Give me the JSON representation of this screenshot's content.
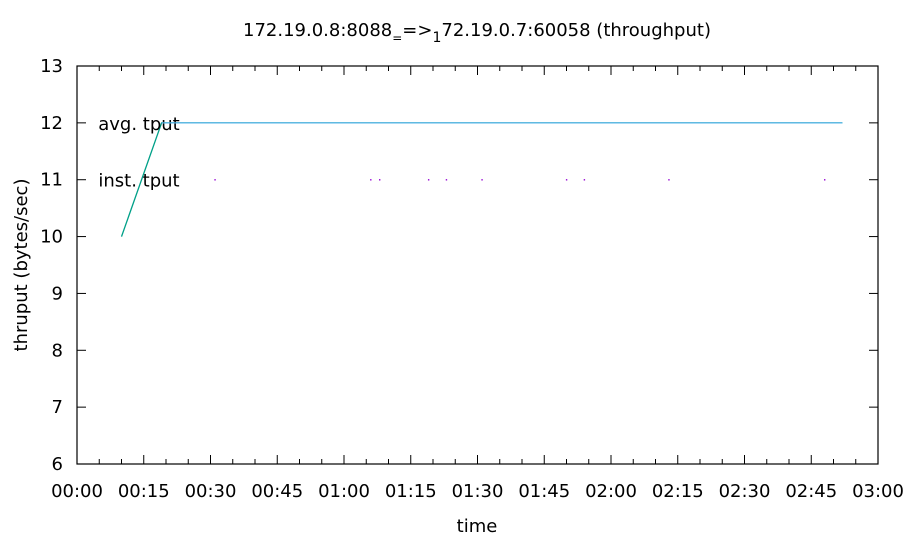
{
  "chart_data": {
    "type": "line",
    "title": {
      "part1": "172.19.0.8:8088",
      "part2": "=>",
      "part3": "72.19.0.7:60058 (throughput)",
      "sub1": "=",
      "sub2": "1"
    },
    "xlabel": "time",
    "ylabel": "thruput (bytes/sec)",
    "x_unit": "minutes",
    "xlim": [
      0,
      180
    ],
    "ylim": [
      6,
      13
    ],
    "grid": false,
    "x_ticks": [
      {
        "v": 0,
        "label": "00:00"
      },
      {
        "v": 15,
        "label": "00:15"
      },
      {
        "v": 30,
        "label": "00:30"
      },
      {
        "v": 45,
        "label": "00:45"
      },
      {
        "v": 60,
        "label": "01:00"
      },
      {
        "v": 75,
        "label": "01:15"
      },
      {
        "v": 90,
        "label": "01:30"
      },
      {
        "v": 105,
        "label": "01:45"
      },
      {
        "v": 120,
        "label": "02:00"
      },
      {
        "v": 135,
        "label": "02:15"
      },
      {
        "v": 150,
        "label": "02:30"
      },
      {
        "v": 165,
        "label": "02:45"
      },
      {
        "v": 180,
        "label": "03:00"
      }
    ],
    "y_ticks": [
      {
        "v": 6,
        "label": "6"
      },
      {
        "v": 7,
        "label": "7"
      },
      {
        "v": 8,
        "label": "8"
      },
      {
        "v": 9,
        "label": "9"
      },
      {
        "v": 10,
        "label": "10"
      },
      {
        "v": 11,
        "label": "11"
      },
      {
        "v": 12,
        "label": "12"
      },
      {
        "v": 13,
        "label": "13"
      }
    ],
    "series": [
      {
        "name": "avg. tput",
        "color": "#00a088",
        "style": "line",
        "legend_y": 12,
        "points": [
          [
            10,
            10
          ],
          [
            19,
            12
          ],
          [
            172,
            12
          ]
        ]
      },
      {
        "name": "",
        "color": "#56b4e9",
        "style": "line",
        "points": [
          [
            19,
            12
          ],
          [
            172,
            12
          ]
        ]
      },
      {
        "name": "inst. tput",
        "color": "#9400d3",
        "style": "points",
        "legend_y": 11,
        "points": [
          [
            31,
            11
          ],
          [
            66,
            11
          ],
          [
            68,
            11
          ],
          [
            79,
            11
          ],
          [
            83,
            11
          ],
          [
            91,
            11
          ],
          [
            110,
            11
          ],
          [
            114,
            11
          ],
          [
            133,
            11
          ],
          [
            168,
            11
          ]
        ]
      }
    ]
  }
}
